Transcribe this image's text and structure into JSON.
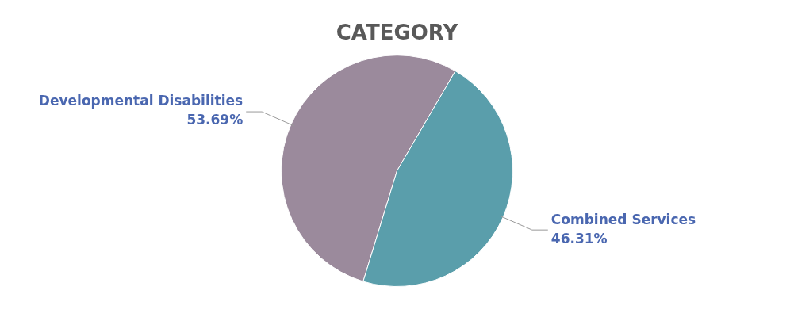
{
  "chart_data": {
    "type": "pie",
    "title": "CATEGORY",
    "categories": [
      "Developmental Disabilities",
      "Combined Services"
    ],
    "values": [
      53.69,
      46.31
    ],
    "colors": [
      "#9b8a9c",
      "#5a9eab"
    ],
    "value_labels": [
      "53.69%",
      "46.31%"
    ],
    "legend": false
  }
}
